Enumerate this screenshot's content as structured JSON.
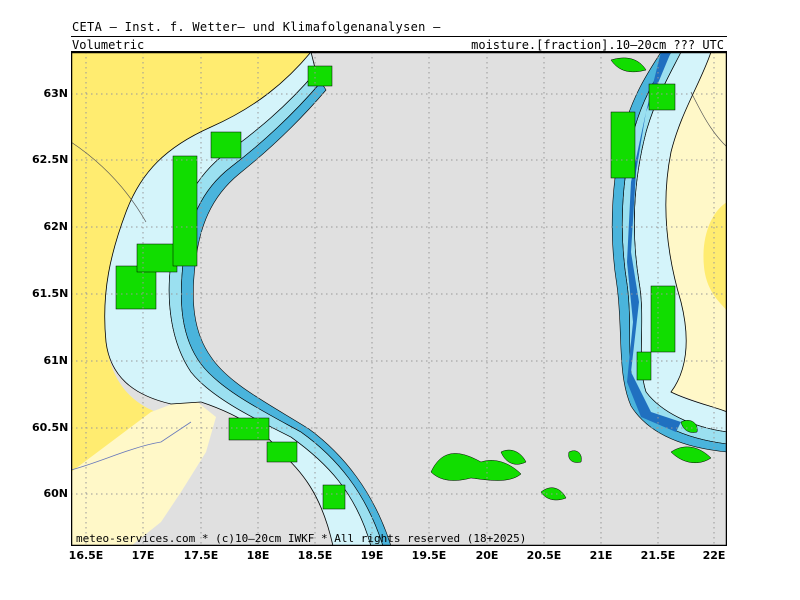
{
  "header": {
    "title": "CETA — Inst. f. Wetter— und Klimafolgenanalysen —",
    "left": "Volumetric",
    "right": "moisture.[fraction].10–20cm ??? UTC"
  },
  "footer": "meteo-services.com * (c)10–20cm IWKF * All rights reserved (18+2025)",
  "axes": {
    "x_ticks": [
      "16.5E",
      "17E",
      "17.5E",
      "18E",
      "18.5E",
      "19E",
      "19.5E",
      "20E",
      "20.5E",
      "21E",
      "21.5E",
      "22E"
    ],
    "y_ticks": [
      "63N",
      "62.5N",
      "62N",
      "61.5N",
      "61N",
      "60.5N",
      "60N"
    ]
  },
  "colors": {
    "sea": "#e0e0e0",
    "land_far": "#ffec70",
    "land_inner": "#fff8c8",
    "shade_1": "#d4f4fa",
    "shade_2": "#9be0f0",
    "shade_3": "#4ab4dc",
    "shade_4": "#2070c0",
    "shade_5": "#0c2fa0",
    "island": "#11dd00",
    "grid": "#999999"
  }
}
